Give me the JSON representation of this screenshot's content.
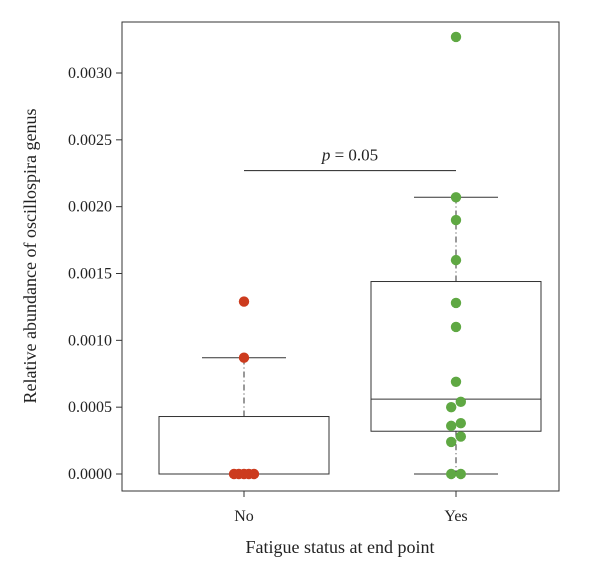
{
  "chart_data": {
    "type": "box",
    "xlabel": "Fatigue status at end point",
    "ylabel": "Relative abundance of oscillospira genus",
    "ylim": [
      -0.0001,
      0.0034
    ],
    "yticks": [
      "0.0000",
      "0.0005",
      "0.0010",
      "0.0015",
      "0.0020",
      "0.0025",
      "0.0030"
    ],
    "ytick_values": [
      0.0,
      0.0005,
      0.001,
      0.0015,
      0.002,
      0.0025,
      0.003
    ],
    "categories": [
      "No",
      "Yes"
    ],
    "groups": [
      {
        "name": "No",
        "color": "#cc3b1e",
        "box": {
          "q1": 0.0,
          "median": 0.0,
          "q3": 0.00043,
          "whisker_low": 0.0,
          "whisker_high": 0.00087
        },
        "points": [
          {
            "y": 0.0,
            "jitter": -0.25
          },
          {
            "y": 0.0,
            "jitter": -0.13
          },
          {
            "y": 0.0,
            "jitter": 0.0
          },
          {
            "y": 0.0,
            "jitter": 0.12
          },
          {
            "y": 0.0,
            "jitter": 0.25
          },
          {
            "y": 0.00087,
            "jitter": 0.0
          },
          {
            "y": 0.00129,
            "jitter": 0.0
          }
        ]
      },
      {
        "name": "Yes",
        "color": "#5fa843",
        "box": {
          "q1": 0.00032,
          "median": 0.00056,
          "q3": 0.00144,
          "whisker_low": 0.0,
          "whisker_high": 0.00207
        },
        "points": [
          {
            "y": 0.0,
            "jitter": -0.12
          },
          {
            "y": 0.0,
            "jitter": 0.12
          },
          {
            "y": 0.00024,
            "jitter": -0.12
          },
          {
            "y": 0.00028,
            "jitter": 0.12
          },
          {
            "y": 0.00036,
            "jitter": -0.12
          },
          {
            "y": 0.00038,
            "jitter": 0.12
          },
          {
            "y": 0.0005,
            "jitter": -0.12
          },
          {
            "y": 0.00054,
            "jitter": 0.12
          },
          {
            "y": 0.00069,
            "jitter": 0.0
          },
          {
            "y": 0.0011,
            "jitter": 0.0
          },
          {
            "y": 0.00128,
            "jitter": 0.0
          },
          {
            "y": 0.0016,
            "jitter": 0.0
          },
          {
            "y": 0.0019,
            "jitter": 0.0
          },
          {
            "y": 0.00207,
            "jitter": 0.0
          },
          {
            "y": 0.00327,
            "jitter": 0.0
          }
        ]
      }
    ],
    "annotation": {
      "p_symbol": "p",
      "p_value_text": " = 0.05",
      "bracket_y": 0.00227
    }
  }
}
